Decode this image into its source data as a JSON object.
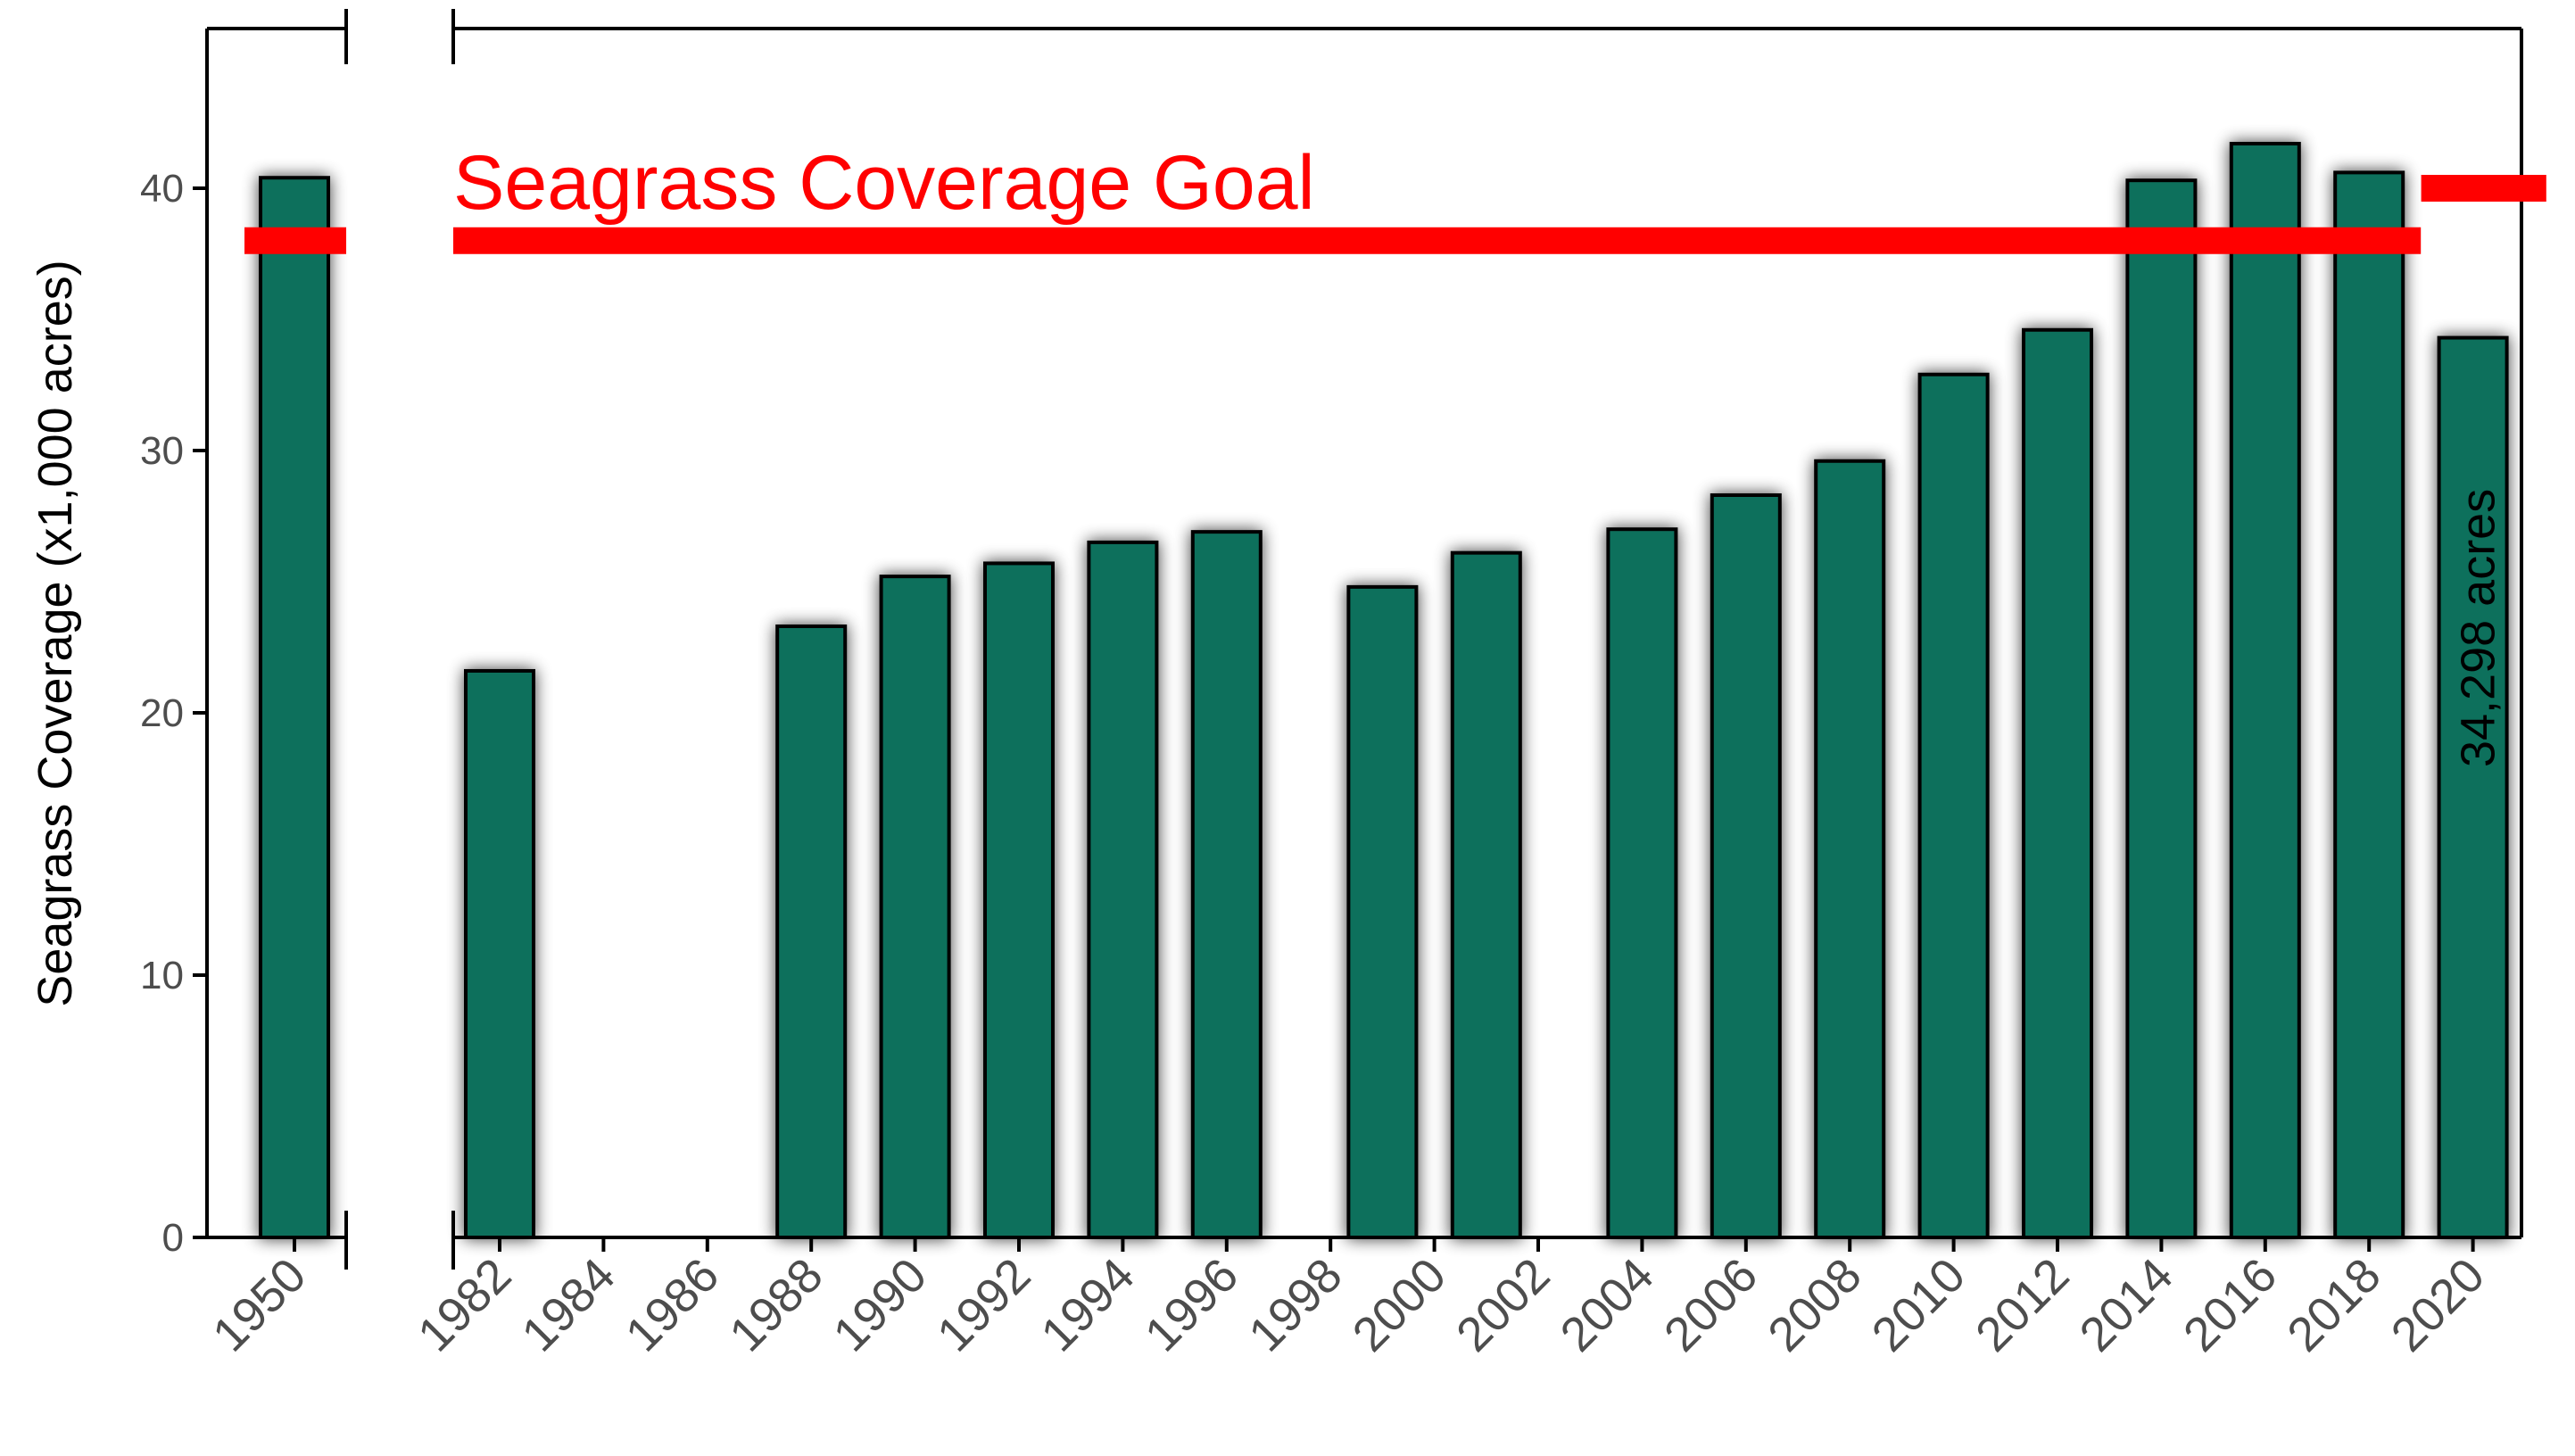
{
  "chart_data": {
    "type": "bar",
    "ylabel": "Seagrass Coverage (x1,000 acres)",
    "xlabel": "",
    "ylim": [
      0,
      45
    ],
    "yticks": [
      0,
      10,
      20,
      30,
      40
    ],
    "xticks": [
      "1950",
      "1982",
      "1984",
      "1986",
      "1988",
      "1990",
      "1992",
      "1994",
      "1996",
      "1998",
      "2000",
      "2002",
      "2004",
      "2006",
      "2008",
      "2010",
      "2012",
      "2014",
      "2016",
      "2018",
      "2020"
    ],
    "bars": [
      {
        "year": 1950,
        "value": 40.4
      },
      {
        "year": 1982,
        "value": 21.6
      },
      {
        "year": 1988,
        "value": 23.3
      },
      {
        "year": 1990,
        "value": 25.2
      },
      {
        "year": 1992,
        "value": 25.7
      },
      {
        "year": 1994,
        "value": 26.5
      },
      {
        "year": 1996,
        "value": 26.9
      },
      {
        "year": 1999,
        "value": 24.8
      },
      {
        "year": 2001,
        "value": 26.1
      },
      {
        "year": 2004,
        "value": 27.0
      },
      {
        "year": 2006,
        "value": 28.3
      },
      {
        "year": 2008,
        "value": 29.6
      },
      {
        "year": 2010,
        "value": 32.9
      },
      {
        "year": 2012,
        "value": 34.6
      },
      {
        "year": 2014,
        "value": 40.3
      },
      {
        "year": 2016,
        "value": 41.7
      },
      {
        "year": 2018,
        "value": 40.6
      },
      {
        "year": 2020,
        "value": 34.3
      }
    ],
    "goal": {
      "label": "Seagrass Coverage Goal",
      "segments": [
        {
          "from": 1950,
          "to": 1950,
          "value": 38.0
        },
        {
          "from": 1982,
          "to": 2018,
          "value": 38.0
        },
        {
          "from": 2020,
          "to": 2021,
          "value": 40.0
        }
      ]
    },
    "annotation": {
      "text": "34,298 acres",
      "year": 2020
    },
    "axis_break_between": [
      1950,
      1982
    ],
    "grid": false,
    "colors": {
      "bar_fill": "#0f705c",
      "bar_stroke": "#000000",
      "goal": "#ff0000",
      "tick_label": "#4d4d4d"
    }
  }
}
